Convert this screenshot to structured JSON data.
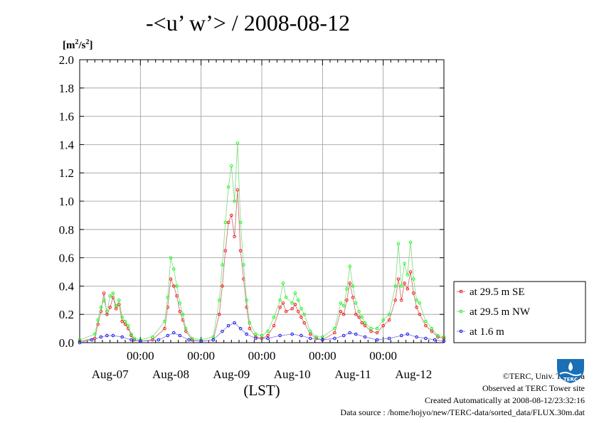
{
  "title": "-<u’ w’> / 2008-08-12",
  "unit": {
    "base": "[m",
    "sup": "2",
    "mid": "/s",
    "sup2": "2",
    "end": "]"
  },
  "footer": {
    "copyright": "©TERC, Univ. Tsukuba",
    "observed": "Observed at TERC Tower site",
    "created": "Created Automatically at 2008-08-12/23:32:16",
    "source": "Data source : /home/hojyo/new/TERC-data/sorted_data/FLUX.30m.dat",
    "logo_text": "TERC"
  },
  "colors": {
    "se": "#ff0000",
    "nw": "#00ff00",
    "low": "#0000ff",
    "line_se": "#cc7777",
    "line_nw": "#88dd88",
    "line_low": "#8888dd"
  },
  "chart_data": {
    "type": "line",
    "title": "-<u’ w’> / 2008-08-12",
    "ylabel": "[m2/s2]",
    "xlabel": "(LST)",
    "ylim": [
      0,
      2.0
    ],
    "yticks": [
      "0.0",
      "0.2",
      "0.4",
      "0.6",
      "0.8",
      "1.0",
      "1.2",
      "1.4",
      "1.6",
      "1.8",
      "2.0"
    ],
    "xlim_days": [
      0,
      6
    ],
    "x_midnight_labels": [
      "00:00",
      "00:00",
      "00:00",
      "00:00",
      "00:00"
    ],
    "x_day_labels": [
      "Aug-07",
      "Aug-08",
      "Aug-09",
      "Aug-10",
      "Aug-11",
      "Aug-12"
    ],
    "grid": true,
    "legend_position": "right",
    "series": [
      {
        "name": "at 29.5 m SE",
        "marker_color": "#ff0000",
        "points": [
          [
            0.0,
            0.01
          ],
          [
            0.25,
            0.03
          ],
          [
            0.3,
            0.13
          ],
          [
            0.35,
            0.22
          ],
          [
            0.4,
            0.35
          ],
          [
            0.45,
            0.2
          ],
          [
            0.5,
            0.25
          ],
          [
            0.55,
            0.32
          ],
          [
            0.6,
            0.24
          ],
          [
            0.65,
            0.27
          ],
          [
            0.7,
            0.15
          ],
          [
            0.75,
            0.13
          ],
          [
            0.8,
            0.1
          ],
          [
            0.85,
            0.05
          ],
          [
            0.9,
            0.02
          ],
          [
            1.0,
            0.01
          ],
          [
            1.2,
            0.02
          ],
          [
            1.4,
            0.1
          ],
          [
            1.45,
            0.25
          ],
          [
            1.5,
            0.45
          ],
          [
            1.55,
            0.4
          ],
          [
            1.6,
            0.33
          ],
          [
            1.65,
            0.22
          ],
          [
            1.7,
            0.16
          ],
          [
            1.75,
            0.08
          ],
          [
            1.85,
            0.02
          ],
          [
            2.0,
            0.01
          ],
          [
            2.2,
            0.02
          ],
          [
            2.3,
            0.2
          ],
          [
            2.35,
            0.4
          ],
          [
            2.4,
            0.65
          ],
          [
            2.45,
            0.85
          ],
          [
            2.5,
            0.9
          ],
          [
            2.55,
            0.75
          ],
          [
            2.6,
            1.08
          ],
          [
            2.65,
            0.65
          ],
          [
            2.7,
            0.45
          ],
          [
            2.75,
            0.25
          ],
          [
            2.8,
            0.1
          ],
          [
            2.9,
            0.04
          ],
          [
            3.0,
            0.03
          ],
          [
            3.1,
            0.05
          ],
          [
            3.2,
            0.12
          ],
          [
            3.3,
            0.25
          ],
          [
            3.35,
            0.28
          ],
          [
            3.4,
            0.22
          ],
          [
            3.5,
            0.24
          ],
          [
            3.55,
            0.27
          ],
          [
            3.6,
            0.22
          ],
          [
            3.65,
            0.18
          ],
          [
            3.7,
            0.14
          ],
          [
            3.8,
            0.06
          ],
          [
            3.9,
            0.03
          ],
          [
            4.0,
            0.02
          ],
          [
            4.2,
            0.07
          ],
          [
            4.3,
            0.22
          ],
          [
            4.35,
            0.2
          ],
          [
            4.4,
            0.3
          ],
          [
            4.45,
            0.42
          ],
          [
            4.5,
            0.32
          ],
          [
            4.55,
            0.2
          ],
          [
            4.6,
            0.18
          ],
          [
            4.65,
            0.14
          ],
          [
            4.7,
            0.12
          ],
          [
            4.8,
            0.08
          ],
          [
            4.9,
            0.07
          ],
          [
            5.0,
            0.12
          ],
          [
            5.1,
            0.16
          ],
          [
            5.2,
            0.3
          ],
          [
            5.25,
            0.45
          ],
          [
            5.3,
            0.3
          ],
          [
            5.35,
            0.42
          ],
          [
            5.4,
            0.38
          ],
          [
            5.45,
            0.5
          ],
          [
            5.5,
            0.35
          ],
          [
            5.55,
            0.25
          ],
          [
            5.6,
            0.2
          ],
          [
            5.7,
            0.12
          ],
          [
            5.8,
            0.08
          ],
          [
            5.9,
            0.04
          ],
          [
            6.0,
            0.03
          ]
        ]
      },
      {
        "name": "at 29.5 m NW",
        "marker_color": "#00ff00",
        "points": [
          [
            0.0,
            0.02
          ],
          [
            0.25,
            0.06
          ],
          [
            0.3,
            0.16
          ],
          [
            0.35,
            0.25
          ],
          [
            0.4,
            0.3
          ],
          [
            0.45,
            0.22
          ],
          [
            0.5,
            0.33
          ],
          [
            0.55,
            0.35
          ],
          [
            0.6,
            0.26
          ],
          [
            0.65,
            0.3
          ],
          [
            0.7,
            0.18
          ],
          [
            0.75,
            0.15
          ],
          [
            0.8,
            0.12
          ],
          [
            0.85,
            0.06
          ],
          [
            0.9,
            0.03
          ],
          [
            1.0,
            0.02
          ],
          [
            1.2,
            0.04
          ],
          [
            1.4,
            0.15
          ],
          [
            1.45,
            0.32
          ],
          [
            1.5,
            0.6
          ],
          [
            1.55,
            0.52
          ],
          [
            1.6,
            0.4
          ],
          [
            1.65,
            0.28
          ],
          [
            1.7,
            0.2
          ],
          [
            1.75,
            0.1
          ],
          [
            1.85,
            0.03
          ],
          [
            2.0,
            0.02
          ],
          [
            2.2,
            0.04
          ],
          [
            2.3,
            0.3
          ],
          [
            2.35,
            0.55
          ],
          [
            2.4,
            0.85
          ],
          [
            2.45,
            1.1
          ],
          [
            2.5,
            1.25
          ],
          [
            2.55,
            1.0
          ],
          [
            2.6,
            1.41
          ],
          [
            2.65,
            0.85
          ],
          [
            2.7,
            0.55
          ],
          [
            2.75,
            0.3
          ],
          [
            2.8,
            0.14
          ],
          [
            2.9,
            0.06
          ],
          [
            3.0,
            0.05
          ],
          [
            3.1,
            0.08
          ],
          [
            3.2,
            0.18
          ],
          [
            3.3,
            0.3
          ],
          [
            3.35,
            0.42
          ],
          [
            3.4,
            0.32
          ],
          [
            3.5,
            0.28
          ],
          [
            3.55,
            0.35
          ],
          [
            3.6,
            0.3
          ],
          [
            3.65,
            0.24
          ],
          [
            3.7,
            0.2
          ],
          [
            3.8,
            0.08
          ],
          [
            3.9,
            0.04
          ],
          [
            4.0,
            0.04
          ],
          [
            4.2,
            0.1
          ],
          [
            4.3,
            0.28
          ],
          [
            4.35,
            0.26
          ],
          [
            4.4,
            0.38
          ],
          [
            4.45,
            0.54
          ],
          [
            4.5,
            0.4
          ],
          [
            4.55,
            0.28
          ],
          [
            4.6,
            0.22
          ],
          [
            4.65,
            0.18
          ],
          [
            4.7,
            0.14
          ],
          [
            4.8,
            0.1
          ],
          [
            4.9,
            0.1
          ],
          [
            5.0,
            0.16
          ],
          [
            5.1,
            0.2
          ],
          [
            5.2,
            0.4
          ],
          [
            5.25,
            0.7
          ],
          [
            5.3,
            0.4
          ],
          [
            5.35,
            0.56
          ],
          [
            5.4,
            0.48
          ],
          [
            5.45,
            0.71
          ],
          [
            5.5,
            0.45
          ],
          [
            5.55,
            0.3
          ],
          [
            5.6,
            0.28
          ],
          [
            5.7,
            0.15
          ],
          [
            5.8,
            0.1
          ],
          [
            5.9,
            0.05
          ],
          [
            6.0,
            0.04
          ]
        ]
      },
      {
        "name": "at 1.6 m",
        "marker_color": "#0000ff",
        "points": [
          [
            0.0,
            0.0
          ],
          [
            0.2,
            0.02
          ],
          [
            0.35,
            0.04
          ],
          [
            0.45,
            0.05
          ],
          [
            0.55,
            0.05
          ],
          [
            0.7,
            0.04
          ],
          [
            0.85,
            0.02
          ],
          [
            1.0,
            0.01
          ],
          [
            1.3,
            0.02
          ],
          [
            1.45,
            0.05
          ],
          [
            1.55,
            0.07
          ],
          [
            1.65,
            0.05
          ],
          [
            1.8,
            0.02
          ],
          [
            2.0,
            0.01
          ],
          [
            2.2,
            0.02
          ],
          [
            2.35,
            0.08
          ],
          [
            2.45,
            0.12
          ],
          [
            2.55,
            0.14
          ],
          [
            2.65,
            0.1
          ],
          [
            2.75,
            0.06
          ],
          [
            2.9,
            0.03
          ],
          [
            3.1,
            0.03
          ],
          [
            3.3,
            0.05
          ],
          [
            3.5,
            0.06
          ],
          [
            3.65,
            0.05
          ],
          [
            3.8,
            0.03
          ],
          [
            4.0,
            0.02
          ],
          [
            4.2,
            0.03
          ],
          [
            4.35,
            0.05
          ],
          [
            4.45,
            0.07
          ],
          [
            4.55,
            0.06
          ],
          [
            4.7,
            0.04
          ],
          [
            4.9,
            0.02
          ],
          [
            5.1,
            0.03
          ],
          [
            5.3,
            0.05
          ],
          [
            5.4,
            0.06
          ],
          [
            5.55,
            0.04
          ],
          [
            5.7,
            0.03
          ],
          [
            5.85,
            0.02
          ],
          [
            6.0,
            0.01
          ]
        ]
      }
    ]
  }
}
